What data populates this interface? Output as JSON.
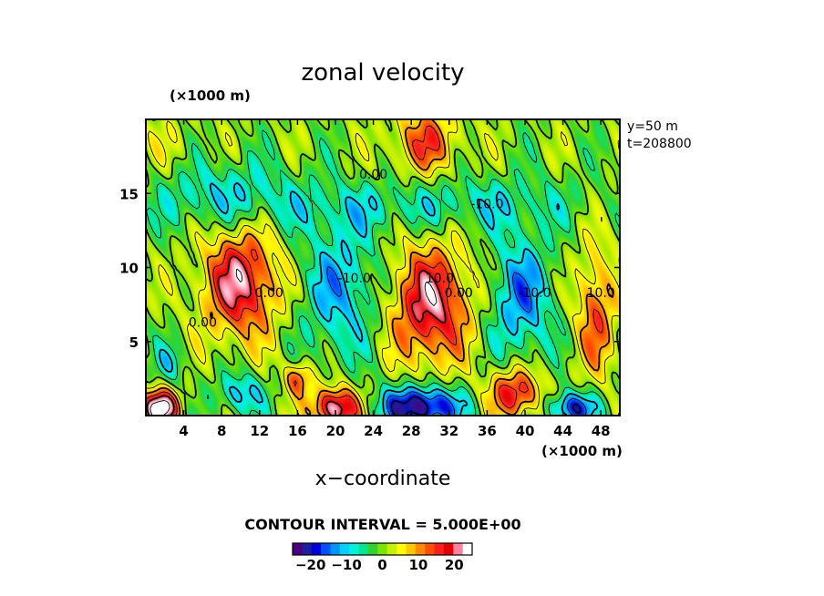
{
  "chart_data": {
    "type": "heatmap",
    "title": "zonal velocity",
    "xlabel": "x−coordinate",
    "x_units": "(×1000 m)",
    "y_units": "(×1000 m)",
    "side_labels": [
      "y=50  m",
      "t=208800"
    ],
    "xlim": [
      0,
      50
    ],
    "ylim": [
      0,
      20
    ],
    "x_ticks": [
      4,
      8,
      12,
      16,
      20,
      24,
      28,
      32,
      36,
      40,
      44,
      48
    ],
    "y_ticks": [
      5,
      10,
      15
    ],
    "contour_interval_text": "CONTOUR INTERVAL = 5.000E+00",
    "contour_interval": 5,
    "contour_labels": [
      {
        "text": "0.00",
        "x": 24,
        "y": 16
      },
      {
        "text": "-10.0",
        "x": 36,
        "y": 14
      },
      {
        "text": "-10.0",
        "x": 22,
        "y": 9
      },
      {
        "text": "-10.0",
        "x": 41,
        "y": 8
      },
      {
        "text": "0.00",
        "x": 13,
        "y": 8
      },
      {
        "text": "0.00",
        "x": 33,
        "y": 8
      },
      {
        "text": "0.00",
        "x": 6,
        "y": 6
      },
      {
        "text": "10.0",
        "x": 48,
        "y": 8
      },
      {
        "text": "10.0",
        "x": 31,
        "y": 9
      }
    ],
    "colorbar": {
      "range": [
        -25,
        25
      ],
      "tick_labels": [
        "−20",
        "−10",
        "0",
        "10",
        "20"
      ],
      "tick_values": [
        -20,
        -10,
        0,
        10,
        20
      ],
      "colors": [
        "#4b0082",
        "#1e1e9b",
        "#0000dc",
        "#0050ff",
        "#0096ff",
        "#00d2ff",
        "#00f0dc",
        "#00e68c",
        "#32d232",
        "#78e600",
        "#c8f000",
        "#ffff00",
        "#ffc800",
        "#ff8c00",
        "#ff5000",
        "#ff1e1e",
        "#e60000",
        "#ff82a0",
        "#ffffff"
      ]
    },
    "features": [
      {
        "x": 29.5,
        "y": 18.5,
        "amp": 14,
        "sx": 2.5,
        "sy": 1.6
      },
      {
        "x": 10,
        "y": 9,
        "amp": 22,
        "sx": 2.8,
        "sy": 2.6
      },
      {
        "x": 30,
        "y": 7.5,
        "amp": 22,
        "sx": 3.0,
        "sy": 2.8
      },
      {
        "x": 47.5,
        "y": 7,
        "amp": 14,
        "sx": 1.5,
        "sy": 3.0
      },
      {
        "x": 20.5,
        "y": 8.5,
        "amp": -12,
        "sx": 3.0,
        "sy": 3.2
      },
      {
        "x": 39.5,
        "y": 8,
        "amp": -14,
        "sx": 2.4,
        "sy": 3.0
      },
      {
        "x": 8,
        "y": 15,
        "amp": -9,
        "sx": 5.5,
        "sy": 1.6
      },
      {
        "x": 24,
        "y": 14,
        "amp": -5,
        "sx": 10,
        "sy": 1.2
      },
      {
        "x": 36,
        "y": 14.5,
        "amp": -5,
        "sx": 8,
        "sy": 1.3
      },
      {
        "x": 1.5,
        "y": 0.5,
        "amp": 28,
        "sx": 1.4,
        "sy": 0.9
      },
      {
        "x": 20,
        "y": 0.5,
        "amp": 26,
        "sx": 1.8,
        "sy": 1.0
      },
      {
        "x": 39,
        "y": 1.5,
        "amp": 20,
        "sx": 2.0,
        "sy": 1.2
      },
      {
        "x": 16,
        "y": 2.5,
        "amp": 15,
        "sx": 1.0,
        "sy": 0.8
      },
      {
        "x": 29,
        "y": 0.6,
        "amp": -26,
        "sx": 3.0,
        "sy": 1.0
      },
      {
        "x": 45,
        "y": 0.5,
        "amp": -20,
        "sx": 1.8,
        "sy": 0.8
      },
      {
        "x": 10,
        "y": 1.5,
        "amp": -12,
        "sx": 1.8,
        "sy": 1.0
      },
      {
        "x": 2.5,
        "y": 3.5,
        "amp": -8,
        "sx": 1.2,
        "sy": 1.0
      },
      {
        "x": 2,
        "y": 18,
        "amp": 3,
        "sx": 3,
        "sy": 2
      }
    ]
  }
}
